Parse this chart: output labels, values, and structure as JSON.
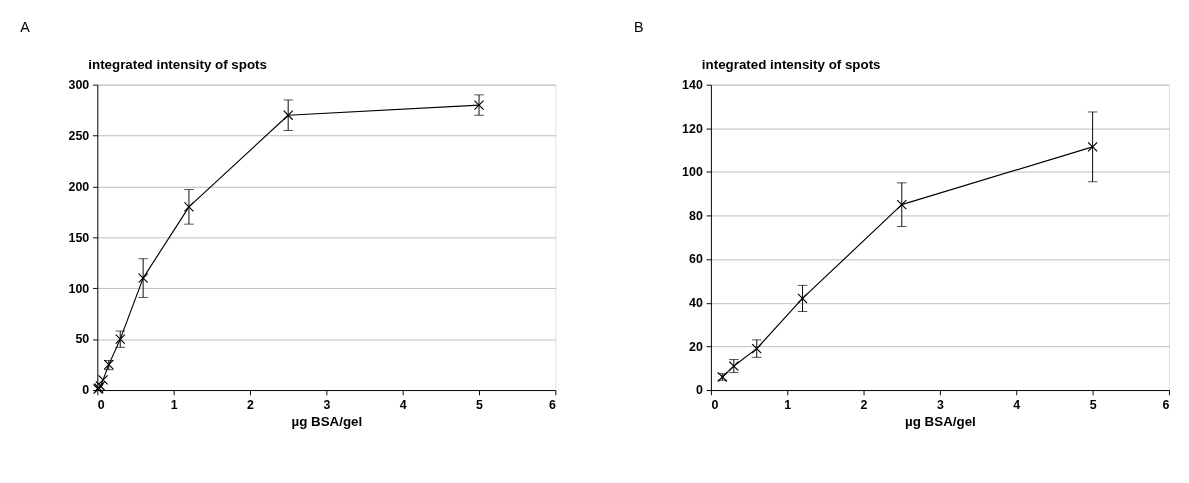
{
  "chart_data": [
    {
      "type": "line",
      "title": "A",
      "ylabel": "integrated intensity of spots",
      "xlabel": "µg BSA/gel",
      "x": [
        0.01,
        0.02,
        0.04,
        0.075,
        0.15,
        0.3,
        0.6,
        1.2,
        2.5,
        5
      ],
      "series": [
        {
          "color": "#000000",
          "values": [
            1,
            2,
            4,
            10,
            25,
            50,
            110,
            180,
            270,
            280
          ],
          "errors": [
            null,
            null,
            null,
            null,
            [
              20,
              29
            ],
            [
              42,
              58
            ],
            [
              91,
              129
            ],
            [
              163,
              197
            ],
            [
              255,
              285
            ],
            [
              270,
              290
            ]
          ]
        }
      ],
      "xlim": [
        0,
        6
      ],
      "xticks": [
        0,
        1,
        2,
        3,
        4,
        5,
        6
      ],
      "ylim": [
        0,
        300
      ],
      "yticks": [
        0,
        50,
        100,
        150,
        200,
        250,
        300
      ],
      "grid": "y",
      "marker": "cross",
      "line_style": "solid"
    },
    {
      "type": "line",
      "title": "B",
      "ylabel": "integrated intensity of spots",
      "xlabel": "µg BSA/gel",
      "x": [
        0.15,
        0.3,
        0.6,
        1.2,
        2.5,
        5
      ],
      "series": [
        {
          "color": "#000000",
          "values": [
            6,
            11,
            19,
            42,
            85,
            111.5
          ],
          "errors": [
            [
              4.5,
              7.5
            ],
            [
              8,
              14
            ],
            [
              15,
              23
            ],
            [
              36,
              48
            ],
            [
              75,
              95
            ],
            [
              95.5,
              127.5
            ]
          ]
        }
      ],
      "xlim": [
        0,
        6
      ],
      "xticks": [
        0,
        1,
        2,
        3,
        4,
        5,
        6
      ],
      "ylim": [
        0,
        140
      ],
      "yticks": [
        0,
        20,
        40,
        60,
        80,
        100,
        120,
        140
      ],
      "grid": "y",
      "marker": "cross",
      "line_style": "solid"
    }
  ]
}
